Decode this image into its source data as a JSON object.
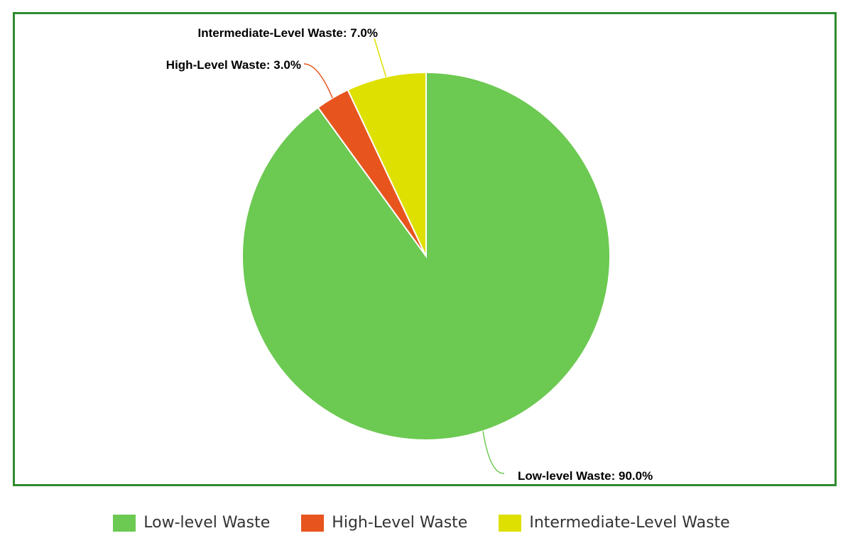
{
  "chart_data": {
    "type": "pie",
    "title": "",
    "start_angle_deg": 0,
    "direction": "clockwise",
    "slices": [
      {
        "name": "Low-level Waste",
        "value": 90.0,
        "label": "Low-level Waste: 90.0%",
        "color": "#6cc952"
      },
      {
        "name": "High-Level Waste",
        "value": 3.0,
        "label": "High-Level Waste: 3.0%",
        "color": "#e8541e"
      },
      {
        "name": "Intermediate-Level Waste",
        "value": 7.0,
        "label": "Intermediate-Level Waste: 7.0%",
        "color": "#dde000"
      }
    ],
    "legend": {
      "position": "bottom",
      "items": [
        "Low-level Waste",
        "High-Level Waste",
        "Intermediate-Level Waste"
      ]
    }
  },
  "frame_color": "#2e8b2e"
}
